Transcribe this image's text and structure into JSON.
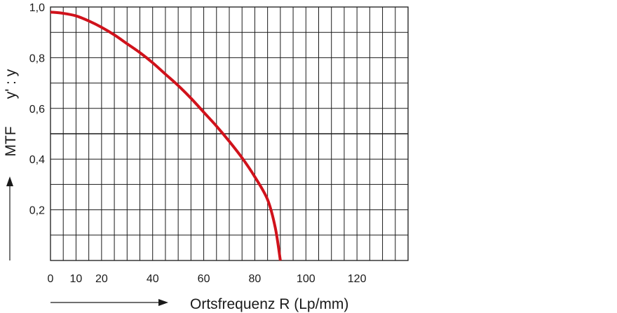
{
  "chart_data": {
    "type": "line",
    "xlabel": "Ortsfrequenz R (Lp/mm)",
    "ylabel_left": "MTF",
    "ylabel_right": "y' : y",
    "xlim": [
      0,
      140
    ],
    "ylim": [
      0,
      1.0
    ],
    "x_ticks": [
      0,
      10,
      20,
      40,
      60,
      80,
      100,
      120
    ],
    "x_tick_labels": [
      "0",
      "10",
      "20",
      "40",
      "60",
      "80",
      "100",
      "120"
    ],
    "y_ticks": [
      0.2,
      0.4,
      0.6,
      0.8,
      1.0
    ],
    "y_tick_labels": [
      "0,2",
      "0,4",
      "0,6",
      "0,8",
      "1,0"
    ],
    "grid": true,
    "series_color": "#d0121b",
    "series": [
      {
        "x": [
          0,
          5,
          10,
          15,
          20,
          25,
          30,
          35,
          40,
          45,
          50,
          55,
          60,
          65,
          70,
          75,
          80,
          85,
          88,
          90
        ],
        "y": [
          0.98,
          0.975,
          0.965,
          0.945,
          0.92,
          0.89,
          0.855,
          0.82,
          0.78,
          0.735,
          0.69,
          0.64,
          0.585,
          0.53,
          0.47,
          0.405,
          0.33,
          0.24,
          0.13,
          0.0
        ]
      }
    ]
  }
}
